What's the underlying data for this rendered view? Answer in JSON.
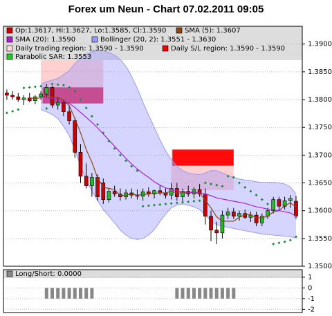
{
  "chart_data": {
    "type": "candlestick",
    "title": "Forex um Neun - Chart 07.02.2011 09:05",
    "xlim": [
      -0.6,
      52.1
    ],
    "ylim": [
      1.35,
      1.3932
    ],
    "yticks": [
      {
        "value": 1.35,
        "label": "1.3500"
      },
      {
        "value": 1.355,
        "label": "1.3550"
      },
      {
        "value": 1.36,
        "label": "1.3600"
      },
      {
        "value": 1.365,
        "label": "1.3650"
      },
      {
        "value": 1.37,
        "label": "1.3700"
      },
      {
        "value": 1.375,
        "label": "1.3750"
      },
      {
        "value": 1.38,
        "label": "1.3800"
      },
      {
        "value": 1.385,
        "label": "1.3850"
      },
      {
        "value": 1.39,
        "label": "1.3900"
      }
    ],
    "grid": true,
    "up_color": "#22bb22",
    "down_color": "#cc0000",
    "open": [
      1.3812,
      1.3808,
      1.3805,
      1.38,
      1.3803,
      1.3798,
      1.3805,
      1.381,
      1.3822,
      1.379,
      1.3795,
      1.3778,
      1.3762,
      1.3705,
      1.3662,
      1.3645,
      1.366,
      1.365,
      1.362,
      1.3635,
      1.363,
      1.3625,
      1.3632,
      1.3628,
      1.3626,
      1.3634,
      1.363,
      1.3636,
      1.3632,
      1.3628,
      1.364,
      1.3625,
      1.3635,
      1.363,
      1.3638,
      1.363,
      1.359,
      1.3565,
      1.356,
      1.3592,
      1.3598,
      1.359,
      1.3595,
      1.3588,
      1.3592,
      1.3578,
      1.359,
      1.36,
      1.362,
      1.3608,
      1.3618,
      1.3617
    ],
    "high": [
      1.3818,
      1.3815,
      1.3812,
      1.3808,
      1.3812,
      1.3808,
      1.3815,
      1.3828,
      1.3825,
      1.3805,
      1.38,
      1.379,
      1.3768,
      1.372,
      1.3685,
      1.3668,
      1.3665,
      1.3658,
      1.364,
      1.3645,
      1.364,
      1.3638,
      1.364,
      1.3638,
      1.364,
      1.3642,
      1.3638,
      1.3645,
      1.364,
      1.365,
      1.365,
      1.364,
      1.3645,
      1.3642,
      1.3648,
      1.364,
      1.36,
      1.358,
      1.36,
      1.3605,
      1.3605,
      1.36,
      1.3602,
      1.3598,
      1.3598,
      1.3595,
      1.3605,
      1.3625,
      1.3625,
      1.3625,
      1.3628,
      1.3627
    ],
    "low": [
      1.38,
      1.38,
      1.3796,
      1.379,
      1.3795,
      1.3792,
      1.38,
      1.3805,
      1.3785,
      1.3782,
      1.377,
      1.3755,
      1.3695,
      1.365,
      1.364,
      1.3625,
      1.3618,
      1.3612,
      1.3615,
      1.3625,
      1.3618,
      1.362,
      1.3622,
      1.362,
      1.3618,
      1.3625,
      1.3622,
      1.3628,
      1.3622,
      1.362,
      1.3618,
      1.3615,
      1.3625,
      1.3622,
      1.3625,
      1.3575,
      1.3545,
      1.354,
      1.355,
      1.3585,
      1.3585,
      1.3582,
      1.3585,
      1.358,
      1.3572,
      1.3572,
      1.3585,
      1.3595,
      1.36,
      1.3602,
      1.3605,
      1.3585
    ],
    "close": [
      1.3808,
      1.3805,
      1.38,
      1.3803,
      1.3798,
      1.3805,
      1.381,
      1.3822,
      1.379,
      1.3795,
      1.3778,
      1.3762,
      1.3705,
      1.3662,
      1.3645,
      1.366,
      1.3625,
      1.362,
      1.3635,
      1.363,
      1.3625,
      1.3632,
      1.3628,
      1.3626,
      1.3634,
      1.363,
      1.3636,
      1.3632,
      1.3628,
      1.364,
      1.3625,
      1.3635,
      1.363,
      1.3638,
      1.363,
      1.359,
      1.3565,
      1.356,
      1.3592,
      1.3598,
      1.359,
      1.3595,
      1.3588,
      1.3592,
      1.3578,
      1.359,
      1.36,
      1.362,
      1.3608,
      1.3618,
      1.3622,
      1.359
    ],
    "regions": [
      {
        "name": "Daily trading region: 1.3590 - 1.3590",
        "color": "rgba(255,150,150,0.45)",
        "x0": 6,
        "x1": 17,
        "low": 1.3793,
        "high": 1.3871
      },
      {
        "name": "Daily S/L region: 1.3590 - 1.3590",
        "color": "rgba(225,0,50,0.85)",
        "x0": 6.3,
        "x1": 17,
        "low": 1.3793,
        "high": 1.3822
      },
      {
        "name": "Daily trading region: 1.3590 - 1.3590",
        "color": "rgba(255,150,150,0.45)",
        "x0": 29,
        "x1": 40,
        "low": 1.3637,
        "high": 1.371
      },
      {
        "name": "Daily S/L region: 1.3590 - 1.3590",
        "color": "rgba(255,0,0,0.95)",
        "x0": 29.2,
        "x1": 40,
        "low": 1.3681,
        "high": 1.371
      }
    ],
    "band": {
      "name": "Bollinger (20, 2): 1.3551 - 1.3630",
      "color": "rgba(150,150,255,0.4)",
      "upper": [
        null,
        null,
        null,
        null,
        null,
        null,
        1.3828,
        1.3832,
        1.3835,
        1.3838,
        1.3845,
        1.3852,
        1.3865,
        1.3875,
        1.3882,
        1.3886,
        1.3888,
        1.3888,
        1.3885,
        1.388,
        1.3872,
        1.386,
        1.3842,
        1.382,
        1.3795,
        1.3772,
        1.375,
        1.3728,
        1.3708,
        1.3692,
        1.368,
        1.3672,
        1.3668,
        1.3666,
        1.3665,
        1.3668,
        1.3672,
        1.3672,
        1.3668,
        1.3664,
        1.366,
        1.3657,
        1.3655,
        1.3654,
        1.3652,
        1.3651,
        1.3651,
        1.3651,
        1.365,
        1.3648,
        1.3643,
        1.363
      ],
      "lower": [
        null,
        null,
        null,
        null,
        null,
        null,
        1.3782,
        1.3778,
        1.3773,
        1.3766,
        1.3752,
        1.3735,
        1.371,
        1.368,
        1.3655,
        1.3635,
        1.3618,
        1.3602,
        1.359,
        1.3578,
        1.3565,
        1.3556,
        1.355,
        1.3548,
        1.355,
        1.3556,
        1.3566,
        1.358,
        1.3594,
        1.3605,
        1.361,
        1.3612,
        1.361,
        1.3607,
        1.3602,
        1.3592,
        1.3582,
        1.3575,
        1.3572,
        1.357,
        1.3568,
        1.3566,
        1.3564,
        1.3562,
        1.356,
        1.3558,
        1.3557,
        1.3556,
        1.3555,
        1.3554,
        1.3553,
        1.3551
      ]
    },
    "series": [
      {
        "name": "SMA (5): 1.3607",
        "color": "#8b4513",
        "values": [
          null,
          null,
          null,
          null,
          1.3803,
          1.3802,
          1.3803,
          1.3808,
          1.3805,
          1.3804,
          1.3799,
          1.3789,
          1.3766,
          1.374,
          1.371,
          1.3687,
          1.3659,
          1.3642,
          1.364,
          1.3638,
          1.3627,
          1.3628,
          1.363,
          1.3628,
          1.3629,
          1.363,
          1.3631,
          1.3632,
          1.3632,
          1.3635,
          1.3632,
          1.3632,
          1.3632,
          1.3634,
          1.3632,
          1.3619,
          1.3605,
          1.3589,
          1.3581,
          1.3581,
          1.3581,
          1.3588,
          1.3593,
          1.3593,
          1.3587,
          1.3587,
          1.359,
          1.3598,
          1.36,
          1.3609,
          1.3614,
          1.3607
        ]
      },
      {
        "name": "SMA (20): 1.3590",
        "color": "#aa22cc",
        "values": [
          null,
          null,
          null,
          null,
          null,
          null,
          1.3805,
          1.3804,
          1.3802,
          1.38,
          1.3797,
          1.3793,
          1.3786,
          1.3777,
          1.3768,
          1.3759,
          1.3749,
          1.3738,
          1.3727,
          1.3716,
          1.3705,
          1.3694,
          1.3684,
          1.3675,
          1.3667,
          1.366,
          1.3652,
          1.3646,
          1.3641,
          1.3638,
          1.3636,
          1.3634,
          1.3633,
          1.3632,
          1.3632,
          1.363,
          1.3627,
          1.3623,
          1.3621,
          1.3619,
          1.3617,
          1.3615,
          1.3613,
          1.361,
          1.3607,
          1.3605,
          1.3603,
          1.3602,
          1.36,
          1.3598,
          1.3596,
          1.359
        ]
      }
    ],
    "sar": {
      "name": "Parabolic SAR: 1.3553",
      "color": "#1e8b3a",
      "values": [
        1.3776,
        1.3779,
        1.3782,
        1.3821,
        1.3822,
        1.3823,
        1.3824,
        1.3784,
        1.3828,
        1.3827,
        1.3826,
        1.3822,
        1.3815,
        1.38,
        1.3785,
        1.377,
        1.3755,
        1.374,
        1.3725,
        1.3712,
        1.37,
        1.369,
        1.368,
        1.3672,
        1.3608,
        1.3609,
        1.361,
        1.3611,
        1.3612,
        1.3613,
        1.3614,
        1.3615,
        1.3616,
        1.3617,
        1.3618,
        1.365,
        1.3648,
        1.3646,
        1.3644,
        1.3662,
        1.366,
        1.365,
        1.3642,
        1.3635,
        1.3628,
        1.362,
        1.3612,
        1.354,
        1.3542,
        1.3544,
        1.3547,
        1.3553
      ]
    },
    "ohlc_label": "Op:1.3617, Hi:1.3627, Lo:1.3585, Cl:1.3590",
    "lower_panel": {
      "type": "bar",
      "name": "Long/Short: 0.0000",
      "color": "#888888",
      "ylim": [
        -2.3,
        1.7
      ],
      "yticks": [
        1,
        0,
        -1,
        -2
      ],
      "values": [
        null,
        null,
        null,
        null,
        null,
        null,
        null,
        -1,
        -1,
        -1,
        -1,
        -1,
        -1,
        -1,
        -1,
        -1,
        null,
        null,
        null,
        null,
        null,
        null,
        null,
        null,
        null,
        null,
        null,
        null,
        null,
        null,
        -1,
        -1,
        -1,
        -1,
        -1,
        -1,
        -1,
        -1,
        -1,
        -1,
        -1,
        null,
        null,
        null,
        null,
        null,
        null,
        null,
        null,
        null,
        null,
        null
      ]
    }
  }
}
